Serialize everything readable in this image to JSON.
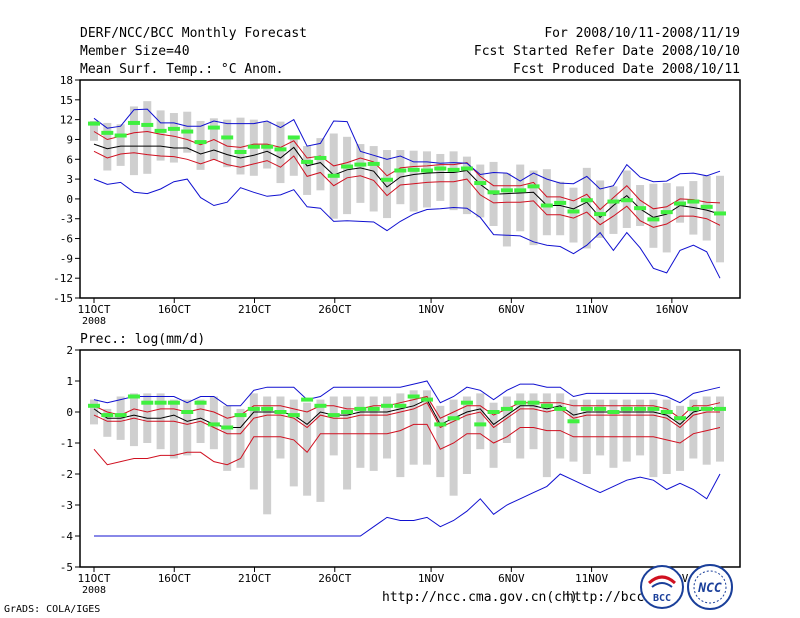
{
  "header": {
    "title": "DERF/NCC/BCC Monthly Forecast",
    "member_size": "Member Size=40",
    "variable": "Mean Surf. Temp.: °C Anom.",
    "period": "For 2008/10/11-2008/11/19",
    "started": "Fcst Started Refer Date 2008/10/10",
    "produced": "Fcst Produced Date 2008/10/11"
  },
  "footer": {
    "grads": "GrADS: COLA/IGES",
    "url1": "http://ncc.cma.gov.cn(ch)",
    "url2": "http://bcc.c",
    "logo1_text": "BCC",
    "logo2_text": "NCC"
  },
  "colors": {
    "ens_mean": "#000000",
    "inner_band": "#d01020",
    "outer_band": "#1010d0",
    "member_bar": "#cfcfcf",
    "observation_dash": "#40f040"
  },
  "chart_data": [
    {
      "type": "line",
      "title": "Mean Surf. Temp.: °C Anom.",
      "ylim": [
        -15,
        18
      ],
      "yticks": [
        18,
        15,
        12,
        9,
        6,
        3,
        0,
        -3,
        -6,
        -9,
        -12,
        -15
      ],
      "xtick_labels": [
        "11OCT",
        "16OCT",
        "21OCT",
        "26OCT",
        "1NOV",
        "6NOV",
        "11NOV",
        "16NOV"
      ],
      "xtick_days": [
        1,
        6,
        11,
        16,
        22,
        27,
        32,
        37
      ],
      "year_label": "2008",
      "days": 40,
      "series": [
        {
          "name": "ensemble-mean",
          "values": [
            8.3,
            7.6,
            8.0,
            8.0,
            8.0,
            8.0,
            7.7,
            7.7,
            6.8,
            7.4,
            6.7,
            6.2,
            6.6,
            7.2,
            6.2,
            7.8,
            5.0,
            5.5,
            3.6,
            4.4,
            4.7,
            4.2,
            1.8,
            3.3,
            3.7,
            3.9,
            4.0,
            4.0,
            4.3,
            2.2,
            0.7,
            0.8,
            0.9,
            1.0,
            -1.0,
            -1.0,
            -1.5,
            -0.5,
            -2.8,
            -1.0,
            0.5,
            -1.5,
            -2.8,
            -2.3,
            -1.0,
            -1.3,
            -1.7,
            -2.3
          ]
        },
        {
          "name": "upper-inner",
          "values": [
            10.2,
            9.0,
            9.5,
            10.0,
            10.2,
            9.8,
            9.5,
            9.0,
            8.2,
            9.0,
            8.0,
            7.8,
            8.3,
            8.3,
            7.8,
            8.8,
            6.2,
            6.5,
            5.0,
            5.5,
            6.2,
            5.6,
            3.5,
            4.7,
            4.9,
            5.0,
            5.2,
            5.2,
            5.5,
            3.4,
            2.0,
            2.0,
            2.0,
            2.5,
            0.3,
            0.3,
            -0.3,
            0.7,
            -1.6,
            0.2,
            2.0,
            -0.2,
            -1.5,
            -1.2,
            0.0,
            -0.1,
            -0.5,
            -0.6
          ]
        },
        {
          "name": "lower-inner",
          "values": [
            7.2,
            6.2,
            6.8,
            7.0,
            6.7,
            6.5,
            6.4,
            6.0,
            5.3,
            6.0,
            5.2,
            4.8,
            5.3,
            5.8,
            4.8,
            6.5,
            3.4,
            4.0,
            2.0,
            3.2,
            3.5,
            2.8,
            0.5,
            2.1,
            2.3,
            2.5,
            2.6,
            2.6,
            3.0,
            0.6,
            -0.6,
            -0.5,
            -0.5,
            -0.3,
            -2.4,
            -2.4,
            -2.9,
            -2.0,
            -3.9,
            -2.6,
            -1.1,
            -3.3,
            -4.3,
            -3.8,
            -2.6,
            -2.6,
            -3.0,
            -4.0
          ]
        },
        {
          "name": "upper-outer",
          "values": [
            12.2,
            10.7,
            11.0,
            13.5,
            13.6,
            11.5,
            11.5,
            11.0,
            11.0,
            11.8,
            11.4,
            11.4,
            11.4,
            11.8,
            10.8,
            12.0,
            8.0,
            8.4,
            11.8,
            11.7,
            7.2,
            6.6,
            6.0,
            6.5,
            5.6,
            5.6,
            5.4,
            5.5,
            5.4,
            3.7,
            4.0,
            3.9,
            2.7,
            3.9,
            3.0,
            2.4,
            2.3,
            3.4,
            1.5,
            2.0,
            5.2,
            3.3,
            2.6,
            2.7,
            3.8,
            3.9,
            3.5,
            4.2
          ]
        },
        {
          "name": "lower-outer",
          "values": [
            3.0,
            2.2,
            2.5,
            1.0,
            0.8,
            1.5,
            2.6,
            3.0,
            0.2,
            -1.0,
            -0.5,
            1.7,
            1.0,
            0.4,
            0.6,
            1.4,
            -1.2,
            -1.4,
            -3.4,
            -3.3,
            -3.4,
            -3.5,
            -4.8,
            -3.4,
            -2.3,
            -1.6,
            -1.5,
            -1.3,
            -1.4,
            -2.8,
            -5.4,
            -5.5,
            -5.6,
            -6.5,
            -7.0,
            -7.2,
            -8.3,
            -7.0,
            -5.1,
            -7.8,
            -5.1,
            -7.4,
            -10.5,
            -11.2,
            -7.8,
            -7.0,
            -8.0,
            -12.0
          ]
        },
        {
          "name": "observed",
          "values": [
            11.4,
            10.0,
            9.6,
            11.5,
            11.2,
            10.3,
            10.6,
            10.2,
            8.6,
            10.8,
            9.3,
            7.1,
            7.9,
            7.9,
            7.5,
            9.3,
            5.6,
            6.2,
            3.5,
            4.9,
            5.2,
            5.3,
            2.9,
            4.3,
            4.4,
            4.3,
            4.6,
            4.4,
            4.6,
            2.4,
            1.0,
            1.3,
            1.3,
            1.9,
            -1.0,
            -0.6,
            -1.9,
            -0.2,
            -2.3,
            -0.4,
            -0.2,
            -1.4,
            -3.1,
            -2.0,
            -0.7,
            -0.4,
            -1.2,
            -2.2
          ]
        },
        {
          "name": "members-max",
          "values": [
            11.8,
            11.5,
            11.3,
            14.0,
            14.8,
            13.4,
            13.0,
            13.2,
            11.8,
            12.2,
            12.0,
            12.3,
            12.0,
            11.7,
            11.7,
            9.6,
            8.0,
            9.2,
            9.9,
            9.4,
            8.3,
            8.0,
            7.4,
            7.4,
            7.3,
            7.2,
            6.8,
            7.2,
            6.4,
            5.2,
            5.6,
            3.9,
            5.2,
            4.3,
            4.5,
            2.6,
            1.7,
            4.7,
            2.8,
            1.9,
            4.3,
            2.1,
            2.3,
            2.4,
            1.9,
            2.7,
            3.5,
            3.5
          ]
        },
        {
          "name": "members-min",
          "values": [
            8.8,
            4.3,
            5.0,
            3.6,
            3.8,
            5.8,
            5.5,
            7.0,
            4.4,
            5.9,
            4.8,
            3.7,
            3.5,
            4.6,
            2.4,
            3.5,
            0.6,
            1.3,
            -3.0,
            -2.3,
            -0.6,
            -1.9,
            -2.9,
            -0.8,
            -1.9,
            -1.3,
            -0.3,
            -1.7,
            -2.3,
            -2.8,
            -4.1,
            -7.2,
            -4.9,
            -7.0,
            -5.5,
            -5.5,
            -6.6,
            -7.5,
            -5.9,
            -5.3,
            -4.4,
            -4.1,
            -7.4,
            -8.1,
            -3.6,
            -5.4,
            -6.3,
            -9.6
          ]
        }
      ]
    },
    {
      "type": "line",
      "title": "Prec.: log(mm/d)",
      "ylim": [
        -5,
        2
      ],
      "yticks": [
        2,
        1,
        0,
        -1,
        -2,
        -3,
        -4,
        -5
      ],
      "xtick_labels": [
        "11OCT",
        "16OCT",
        "21OCT",
        "26OCT",
        "1NOV",
        "6NOV",
        "11NOV",
        "16NOV"
      ],
      "xtick_days": [
        1,
        6,
        11,
        16,
        22,
        27,
        32,
        37
      ],
      "year_label": "2008",
      "days": 40,
      "series": [
        {
          "name": "ensemble-mean",
          "values": [
            0.1,
            -0.2,
            -0.2,
            -0.1,
            -0.2,
            -0.2,
            -0.1,
            -0.3,
            -0.2,
            -0.4,
            -0.5,
            -0.5,
            0.0,
            0.0,
            0.0,
            -0.1,
            -0.4,
            0.0,
            -0.1,
            -0.1,
            0.0,
            0.0,
            0.0,
            0.1,
            0.2,
            0.4,
            -0.4,
            -0.2,
            0.0,
            0.1,
            -0.4,
            -0.1,
            0.2,
            0.2,
            0.1,
            0.2,
            -0.1,
            0.0,
            0.0,
            0.0,
            0.0,
            0.0,
            0.0,
            -0.1,
            -0.4,
            0.0,
            0.1,
            0.1
          ]
        },
        {
          "name": "upper-inner",
          "values": [
            0.2,
            0.0,
            -0.1,
            0.1,
            0.0,
            0.1,
            0.1,
            0.0,
            0.1,
            0.0,
            -0.2,
            -0.1,
            0.2,
            0.2,
            0.2,
            0.1,
            0.0,
            0.2,
            0.2,
            0.1,
            0.1,
            0.2,
            0.2,
            0.3,
            0.4,
            0.5,
            -0.2,
            0.0,
            0.2,
            0.2,
            -0.1,
            0.1,
            0.3,
            0.3,
            0.3,
            0.3,
            0.2,
            0.2,
            0.2,
            0.2,
            0.2,
            0.2,
            0.2,
            0.1,
            -0.2,
            0.2,
            0.2,
            0.3
          ]
        },
        {
          "name": "lower-inner",
          "values": [
            -0.1,
            -0.3,
            -0.3,
            -0.2,
            -0.3,
            -0.3,
            -0.3,
            -0.4,
            -0.3,
            -0.5,
            -0.7,
            -0.7,
            -0.2,
            -0.1,
            -0.1,
            -0.2,
            -0.5,
            -0.1,
            -0.2,
            -0.2,
            -0.1,
            -0.1,
            -0.1,
            0.0,
            0.1,
            0.3,
            -0.5,
            -0.3,
            -0.1,
            0.0,
            -0.5,
            -0.2,
            0.1,
            0.1,
            0.0,
            0.1,
            -0.2,
            -0.1,
            -0.1,
            -0.1,
            -0.1,
            -0.1,
            -0.1,
            -0.2,
            -0.5,
            -0.1,
            0.0,
            0.0
          ]
        },
        {
          "name": "upper-outer",
          "values": [
            0.4,
            0.3,
            0.4,
            0.5,
            0.5,
            0.5,
            0.5,
            0.3,
            0.5,
            0.5,
            0.2,
            0.2,
            0.7,
            0.8,
            0.8,
            0.8,
            0.4,
            0.5,
            0.8,
            0.8,
            0.8,
            0.8,
            0.8,
            0.8,
            0.9,
            1.0,
            0.3,
            0.5,
            0.8,
            0.7,
            0.4,
            0.7,
            0.9,
            0.9,
            0.8,
            0.8,
            0.5,
            0.6,
            0.6,
            0.6,
            0.6,
            0.6,
            0.6,
            0.5,
            0.3,
            0.6,
            0.7,
            0.8
          ]
        },
        {
          "name": "lower-inner-red",
          "values": [
            -1.2,
            -1.7,
            -1.6,
            -1.5,
            -1.5,
            -1.4,
            -1.4,
            -1.3,
            -1.3,
            -1.6,
            -1.7,
            -1.5,
            -0.8,
            -0.8,
            -0.8,
            -0.9,
            -1.3,
            -0.7,
            -0.7,
            -0.7,
            -0.7,
            -0.7,
            -0.7,
            -0.6,
            -0.4,
            -0.4,
            -1.2,
            -1.0,
            -0.7,
            -0.7,
            -1.0,
            -0.8,
            -0.5,
            -0.5,
            -0.6,
            -0.6,
            -0.8,
            -0.8,
            -0.8,
            -0.8,
            -0.8,
            -0.8,
            -0.8,
            -0.9,
            -1.0,
            -0.7,
            -0.6,
            -0.5
          ]
        },
        {
          "name": "lower-outer",
          "values": [
            -4.0,
            -4.0,
            -4.0,
            -4.0,
            -4.0,
            -4.0,
            -4.0,
            -4.0,
            -4.0,
            -4.0,
            -4.0,
            -4.0,
            -4.0,
            -4.0,
            -4.0,
            -4.0,
            -4.0,
            -4.0,
            -4.0,
            -4.0,
            -4.0,
            -3.7,
            -3.4,
            -3.5,
            -3.5,
            -3.4,
            -3.7,
            -3.5,
            -3.2,
            -2.8,
            -3.3,
            -3.0,
            -2.8,
            -2.6,
            -2.4,
            -2.0,
            -2.2,
            -2.4,
            -2.6,
            -2.4,
            -2.2,
            -2.1,
            -2.2,
            -2.5,
            -2.3,
            -2.5,
            -2.8,
            -2.0
          ]
        },
        {
          "name": "observed",
          "values": [
            0.2,
            -0.1,
            -0.1,
            0.5,
            0.3,
            0.3,
            0.3,
            0.0,
            0.3,
            -0.4,
            -0.5,
            -0.1,
            0.1,
            0.1,
            0.0,
            -0.1,
            0.4,
            0.2,
            -0.1,
            0.0,
            0.1,
            0.1,
            0.2,
            0.2,
            0.5,
            0.4,
            -0.4,
            -0.2,
            0.3,
            -0.4,
            0.0,
            0.1,
            0.3,
            0.3,
            0.2,
            0.1,
            -0.3,
            0.1,
            0.1,
            0.0,
            0.1,
            0.1,
            0.1,
            0.0,
            -0.2,
            0.1,
            0.1,
            0.1
          ]
        },
        {
          "name": "members-max",
          "values": [
            0.4,
            0.1,
            0.5,
            0.6,
            0.6,
            0.6,
            0.4,
            0.4,
            0.4,
            0.5,
            0.2,
            0.1,
            0.6,
            0.5,
            0.5,
            0.4,
            0.3,
            0.4,
            0.5,
            0.5,
            0.5,
            0.5,
            0.5,
            0.6,
            0.7,
            0.7,
            0.2,
            0.4,
            0.5,
            0.6,
            0.3,
            0.5,
            0.6,
            0.6,
            0.6,
            0.6,
            0.4,
            0.4,
            0.4,
            0.4,
            0.4,
            0.4,
            0.4,
            0.4,
            0.2,
            0.4,
            0.5,
            0.5
          ]
        },
        {
          "name": "members-min",
          "values": [
            -0.4,
            -0.8,
            -0.9,
            -1.1,
            -1.0,
            -1.2,
            -1.5,
            -1.4,
            -1.0,
            -1.2,
            -1.9,
            -1.8,
            -2.5,
            -3.3,
            -1.5,
            -2.4,
            -2.7,
            -2.9,
            -1.4,
            -2.5,
            -1.8,
            -1.9,
            -1.5,
            -2.1,
            -1.7,
            -1.7,
            -2.1,
            -2.7,
            -2.0,
            -1.2,
            -1.8,
            -1.0,
            -1.5,
            -1.2,
            -2.1,
            -1.5,
            -1.6,
            -2.0,
            -1.4,
            -1.8,
            -1.6,
            -1.4,
            -2.1,
            -2.0,
            -1.9,
            -1.5,
            -1.7,
            -1.6
          ]
        }
      ]
    }
  ]
}
